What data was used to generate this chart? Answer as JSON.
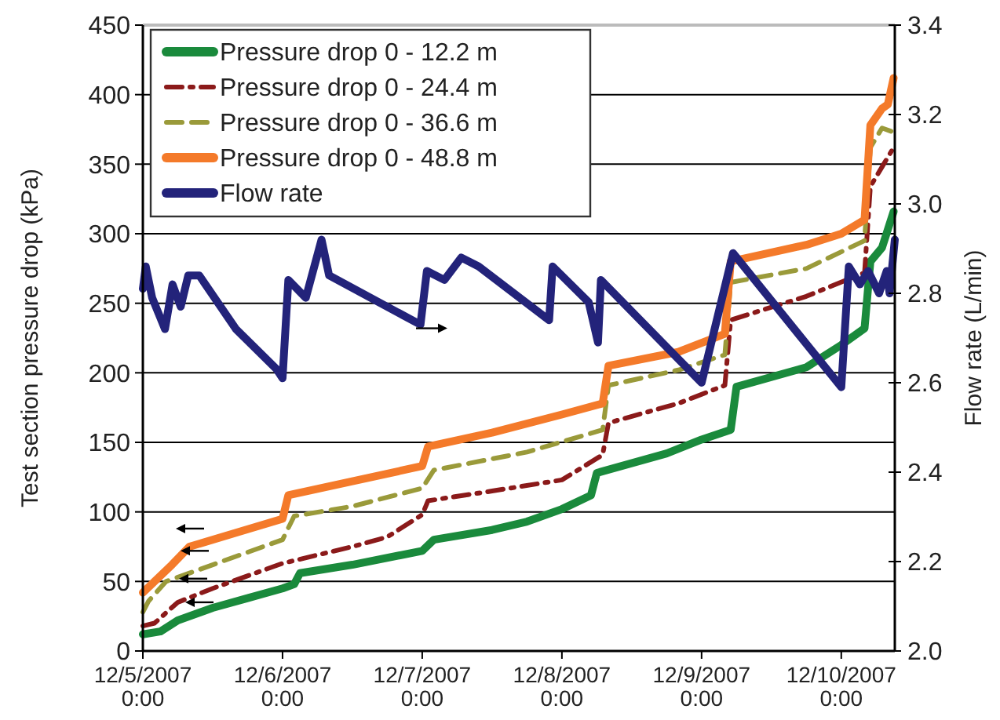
{
  "chart_data": {
    "type": "line",
    "xlabel": null,
    "ylabel": "Test section pressure drop (kPa)",
    "y2label": "Flow rate (L/min)",
    "xlim": [
      "2007-12-05T00:00",
      "2007-12-10T09:12"
    ],
    "xticks": [
      {
        "value": "2007-12-05T00:00",
        "label": "12/5/2007 0:00"
      },
      {
        "value": "2007-12-06T00:00",
        "label": "12/6/2007 0:00"
      },
      {
        "value": "2007-12-07T00:00",
        "label": "12/7/2007 0:00"
      },
      {
        "value": "2007-12-08T00:00",
        "label": "12/8/2007 0:00"
      },
      {
        "value": "2007-12-09T00:00",
        "label": "12/9/2007 0:00"
      },
      {
        "value": "2007-12-10T00:00",
        "label": "12/10/2007 0:00"
      }
    ],
    "ylim": [
      0,
      450
    ],
    "yticks": [
      0,
      50,
      100,
      150,
      200,
      250,
      300,
      350,
      400,
      450
    ],
    "y2lim": [
      2.0,
      3.4
    ],
    "y2ticks": [
      {
        "value": 2.0,
        "label": "2.0"
      },
      {
        "value": 2.2,
        "label": "2.2"
      },
      {
        "value": 2.4,
        "label": "2.4"
      },
      {
        "value": 2.6,
        "label": "2.6"
      },
      {
        "value": 2.8,
        "label": "2.8"
      },
      {
        "value": 3.0,
        "label": "3.0"
      },
      {
        "value": 3.2,
        "label": "3.2"
      },
      {
        "value": 3.4,
        "label": "3.4"
      }
    ],
    "grid": "y",
    "legend": "top left",
    "marker": "none",
    "series": [
      {
        "name": "Pressure drop 0 - 12.2 m",
        "color": "#1a8a3c",
        "line_style": "solid",
        "x": [
          "2007-12-05T00:00",
          "2007-12-05T03:00",
          "2007-12-05T06:00",
          "2007-12-05T12:00",
          "2007-12-05T18:00",
          "2007-12-06T00:00",
          "2007-12-06T02:00",
          "2007-12-06T03:00",
          "2007-12-06T12:00",
          "2007-12-07T00:00",
          "2007-12-07T02:00",
          "2007-12-07T12:00",
          "2007-12-07T18:00",
          "2007-12-08T00:00",
          "2007-12-08T05:00",
          "2007-12-08T06:00",
          "2007-12-08T18:00",
          "2007-12-09T00:00",
          "2007-12-09T05:00",
          "2007-12-09T06:00",
          "2007-12-09T18:00",
          "2007-12-10T00:00",
          "2007-12-10T04:00",
          "2007-12-10T05:00",
          "2007-12-10T07:00",
          "2007-12-10T09:00"
        ],
        "values": [
          12,
          14,
          22,
          31,
          38,
          45,
          48,
          56,
          62,
          72,
          80,
          87,
          93,
          102,
          112,
          128,
          142,
          152,
          159,
          190,
          204,
          220,
          232,
          280,
          290,
          316
        ]
      },
      {
        "name": "Pressure drop 0 - 24.4 m",
        "color": "#8b1a1a",
        "line_style": "dashdot",
        "x": [
          "2007-12-05T00:00",
          "2007-12-05T02:00",
          "2007-12-05T06:00",
          "2007-12-05T12:00",
          "2007-12-06T00:00",
          "2007-12-06T12:00",
          "2007-12-06T18:00",
          "2007-12-07T00:00",
          "2007-12-07T01:00",
          "2007-12-07T12:00",
          "2007-12-08T00:00",
          "2007-12-08T07:00",
          "2007-12-08T08:00",
          "2007-12-08T20:00",
          "2007-12-09T04:00",
          "2007-12-09T05:00",
          "2007-12-09T18:00",
          "2007-12-10T04:00",
          "2007-12-10T05:00",
          "2007-12-10T07:00",
          "2007-12-10T09:00"
        ],
        "values": [
          18,
          20,
          35,
          45,
          63,
          75,
          82,
          98,
          108,
          115,
          123,
          141,
          164,
          178,
          191,
          238,
          255,
          272,
          334,
          348,
          362
        ]
      },
      {
        "name": "Pressure drop 0 - 36.6 m",
        "color": "#9a9a3a",
        "line_style": "dashed",
        "x": [
          "2007-12-05T00:00",
          "2007-12-05T01:00",
          "2007-12-05T04:00",
          "2007-12-05T12:00",
          "2007-12-06T00:00",
          "2007-12-06T02:00",
          "2007-12-06T12:00",
          "2007-12-07T00:00",
          "2007-12-07T02:00",
          "2007-12-07T18:00",
          "2007-12-08T07:00",
          "2007-12-08T08:00",
          "2007-12-08T20:00",
          "2007-12-09T04:00",
          "2007-12-09T05:00",
          "2007-12-09T18:00",
          "2007-12-10T04:00",
          "2007-12-10T05:00",
          "2007-12-10T07:00",
          "2007-12-10T09:00"
        ],
        "values": [
          28,
          36,
          50,
          62,
          80,
          97,
          104,
          117,
          130,
          143,
          159,
          191,
          202,
          213,
          265,
          275,
          295,
          362,
          376,
          373
        ]
      },
      {
        "name": "Pressure drop 0 - 48.8 m",
        "color": "#f47a2a",
        "line_style": "solid",
        "x": [
          "2007-12-05T00:00",
          "2007-12-05T02:00",
          "2007-12-05T05:00",
          "2007-12-05T08:00",
          "2007-12-05T16:00",
          "2007-12-06T00:00",
          "2007-12-06T01:00",
          "2007-12-06T12:00",
          "2007-12-07T00:00",
          "2007-12-07T01:00",
          "2007-12-07T12:00",
          "2007-12-08T00:00",
          "2007-12-08T07:00",
          "2007-12-08T08:00",
          "2007-12-08T20:00",
          "2007-12-09T04:00",
          "2007-12-09T05:00",
          "2007-12-09T18:00",
          "2007-12-10T00:00",
          "2007-12-10T04:00",
          "2007-12-10T05:00",
          "2007-12-10T07:00",
          "2007-12-10T08:00",
          "2007-12-10T09:00"
        ],
        "values": [
          42,
          50,
          62,
          75,
          85,
          95,
          112,
          122,
          133,
          147,
          157,
          170,
          178,
          205,
          215,
          228,
          280,
          292,
          300,
          310,
          378,
          390,
          393,
          412
        ]
      },
      {
        "name": "Flow rate",
        "color": "#23237a",
        "line_style": "solid",
        "axis": "y2",
        "x": [
          "2007-12-05T00:00",
          "2007-12-05T00:30",
          "2007-12-05T01:36",
          "2007-12-05T03:48",
          "2007-12-05T05:06",
          "2007-12-05T06:30",
          "2007-12-05T07:48",
          "2007-12-05T09:42",
          "2007-12-05T16:00",
          "2007-12-05T23:00",
          "2007-12-06T00:00",
          "2007-12-06T01:00",
          "2007-12-06T04:00",
          "2007-12-06T06:42",
          "2007-12-06T08:00",
          "2007-12-06T23:42",
          "2007-12-07T00:48",
          "2007-12-07T03:48",
          "2007-12-07T06:42",
          "2007-12-07T09:42",
          "2007-12-07T21:48",
          "2007-12-07T22:24",
          "2007-12-08T04:36",
          "2007-12-08T06:12",
          "2007-12-08T06:42",
          "2007-12-09T00:00",
          "2007-12-09T05:24",
          "2007-12-10T00:00",
          "2007-12-10T01:18",
          "2007-12-10T03:12",
          "2007-12-10T04:36",
          "2007-12-10T06:30",
          "2007-12-10T07:48",
          "2007-12-10T08:18",
          "2007-12-10T09:12"
        ],
        "values": [
          2.81,
          2.86,
          2.79,
          2.72,
          2.82,
          2.77,
          2.84,
          2.84,
          2.72,
          2.63,
          2.61,
          2.83,
          2.79,
          2.92,
          2.84,
          2.73,
          2.85,
          2.83,
          2.88,
          2.86,
          2.74,
          2.86,
          2.78,
          2.69,
          2.83,
          2.6,
          2.89,
          2.59,
          2.86,
          2.82,
          2.85,
          2.8,
          2.85,
          2.8,
          2.92
        ]
      }
    ]
  }
}
